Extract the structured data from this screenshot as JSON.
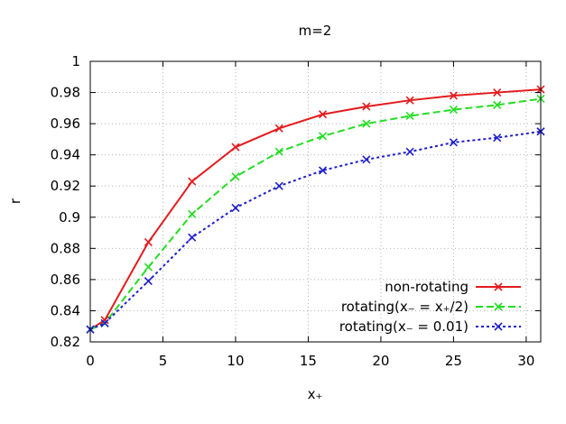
{
  "chart_data": {
    "type": "line",
    "title": "m=2",
    "xlabel": "x₊",
    "ylabel": "r",
    "xlim": [
      0,
      31
    ],
    "ylim": [
      0.82,
      1.0
    ],
    "xticks": [
      0,
      5,
      10,
      15,
      20,
      25,
      30
    ],
    "xtick_labels": [
      "0",
      "5",
      "10",
      "15",
      "20",
      "25",
      "30"
    ],
    "yticks": [
      0.82,
      0.84,
      0.86,
      0.88,
      0.9,
      0.92,
      0.94,
      0.96,
      0.98,
      1.0
    ],
    "ytick_labels": [
      "0.82",
      "0.84",
      "0.86",
      "0.88",
      "0.9",
      "0.92",
      "0.94",
      "0.96",
      "0.98",
      "1"
    ],
    "grid": true,
    "legend_position": "bottom-right",
    "series": [
      {
        "name": "non-rotating",
        "color": "#e41a1c",
        "dash": "solid",
        "marker": "x",
        "x": [
          0,
          1,
          4,
          7,
          10,
          13,
          16,
          19,
          22,
          25,
          28,
          31
        ],
        "y": [
          0.828,
          0.834,
          0.884,
          0.923,
          0.945,
          0.957,
          0.966,
          0.971,
          0.975,
          0.978,
          0.98,
          0.982
        ]
      },
      {
        "name": "rotating(x₋ = x₊/2)",
        "color": "#22dd22",
        "dash": "dashed",
        "marker": "x",
        "x": [
          0,
          1,
          4,
          7,
          10,
          13,
          16,
          19,
          22,
          25,
          28,
          31
        ],
        "y": [
          0.828,
          0.832,
          0.868,
          0.902,
          0.926,
          0.942,
          0.952,
          0.96,
          0.965,
          0.969,
          0.972,
          0.976
        ]
      },
      {
        "name": "rotating(x₋ = 0.01)",
        "color": "#1f1fcc",
        "dash": "dotted",
        "marker": "x",
        "x": [
          0,
          1,
          4,
          7,
          10,
          13,
          16,
          19,
          22,
          25,
          28,
          31
        ],
        "y": [
          0.828,
          0.832,
          0.859,
          0.887,
          0.906,
          0.92,
          0.93,
          0.937,
          0.942,
          0.948,
          0.951,
          0.955
        ]
      }
    ]
  }
}
